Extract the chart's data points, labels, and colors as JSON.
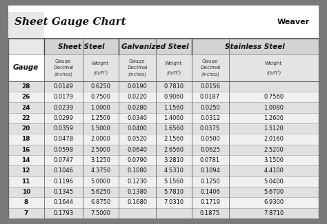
{
  "title": "Sheet Gauge Chart",
  "bg_outer": "#7a7a7a",
  "bg_inner": "#ffffff",
  "title_bg": "#ffffff",
  "table_bg_light": "#f0f0f0",
  "table_bg_dark": "#e0e0e0",
  "header_bg": "#d0d0d0",
  "gauges": [
    "28",
    "26",
    "24",
    "22",
    "20",
    "18",
    "16",
    "14",
    "12",
    "11",
    "10",
    "8",
    "7"
  ],
  "ss_dec": [
    "0.0149",
    "0.0179",
    "0.0239",
    "0.0299",
    "0.0359",
    "0.0478",
    "0.0598",
    "0.0747",
    "0.1046",
    "0.1196",
    "0.1345",
    "0.1644",
    "0.1793"
  ],
  "ss_wt": [
    "0.6250",
    "0.7500",
    "1.0000",
    "1.2500",
    "1.5000",
    "2.0000",
    "2.5000",
    "3.1250",
    "4.3750",
    "5.0000",
    "5.6250",
    "6.8750",
    "7.5000"
  ],
  "gs_dec": [
    "0.0190",
    "0.0220",
    "0.0280",
    "0.0340",
    "0.0400",
    "0.0520",
    "0.0640",
    "0.0790",
    "0.1080",
    "0.1230",
    "0.1380",
    "0.1680",
    ""
  ],
  "gs_wt": [
    "0.7810",
    "0.9060",
    "1.1560",
    "1.4060",
    "1.6560",
    "2.1560",
    "2.6560",
    "3.2810",
    "4.5310",
    "5.1560",
    "5.7810",
    "7.0310",
    ""
  ],
  "sts_dec": [
    "0.0156",
    "0.0187",
    "0.0250",
    "0.0312",
    "0.0375",
    "0.0500",
    "0.0625",
    "0.0781",
    "0.1094",
    "0.1250",
    "0.1406",
    "0.1719",
    "0.1875"
  ],
  "sts_wt": [
    "",
    "0.7560",
    "1.0080",
    "1.2600",
    "1.5120",
    "2.0160",
    "2.5200",
    "3.1500",
    "4.4100",
    "5.0400",
    "5.6700",
    "6.9300",
    "7.8710"
  ]
}
